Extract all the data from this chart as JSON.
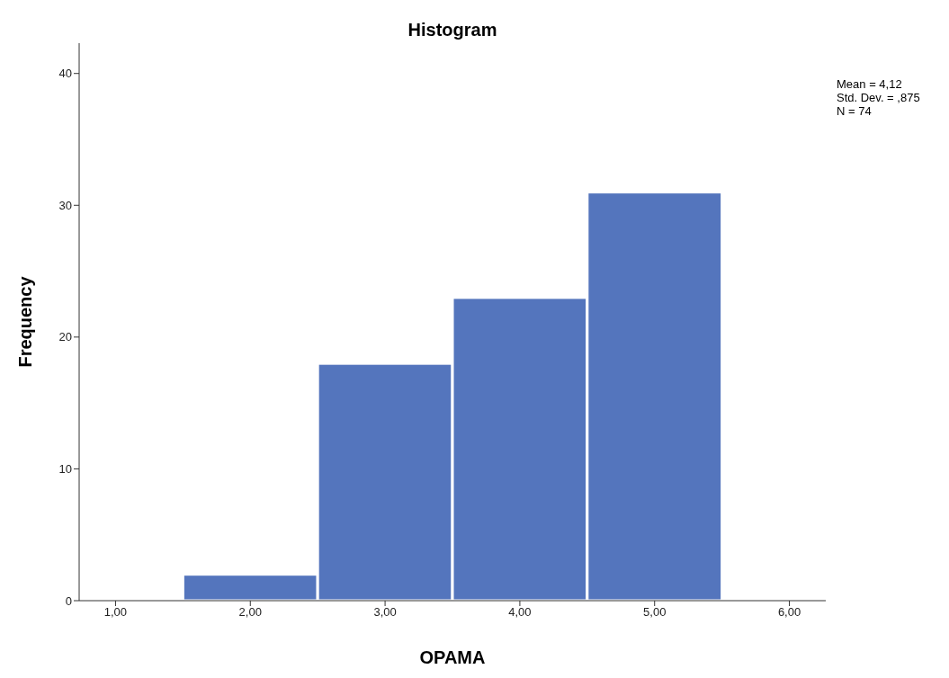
{
  "chart_data": {
    "type": "histogram",
    "title": "Histogram",
    "xlabel": "OPAMA",
    "ylabel": "Frequency",
    "bins": [
      1.5,
      2.5,
      3.5,
      4.5,
      5.5
    ],
    "values": [
      2,
      18,
      23,
      31
    ],
    "color": "#5475bd",
    "xlim": [
      0.73,
      6.27
    ],
    "xticks": [
      {
        "value": 1,
        "label": "1,00"
      },
      {
        "value": 2,
        "label": "2,00"
      },
      {
        "value": 3,
        "label": "3,00"
      },
      {
        "value": 4,
        "label": "4,00"
      },
      {
        "value": 5,
        "label": "5,00"
      },
      {
        "value": 6,
        "label": "6,00"
      }
    ],
    "ylim": [
      0,
      42.3
    ],
    "yticks": [
      0,
      10,
      20,
      30,
      40
    ],
    "annotations": [
      "Mean = 4,12",
      "Std. Dev. = ,875",
      "N = 74"
    ]
  }
}
